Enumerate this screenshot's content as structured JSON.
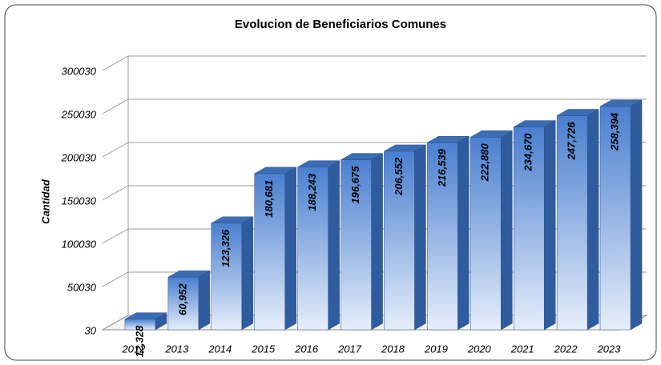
{
  "chart_data": {
    "type": "bar3d",
    "title": "Evolucion de Beneficiarios Comunes",
    "y_label": "Cantidad",
    "categories": [
      "2012",
      "2013",
      "2014",
      "2015",
      "2016",
      "2017",
      "2018",
      "2019",
      "2020",
      "2021",
      "2022",
      "2023"
    ],
    "values": [
      12328,
      60952,
      123326,
      180681,
      188243,
      196675,
      206552,
      216539,
      222880,
      234670,
      247726,
      258394
    ],
    "value_labels": [
      "12,328",
      "60,952",
      "123,326",
      "180,681",
      "188,243",
      "196,675",
      "206,552",
      "216,539",
      "222,880",
      "234,670",
      "247,726",
      "258,394"
    ],
    "color": "#4a7fcf",
    "ylim": [
      30,
      300030
    ],
    "yticks": [
      30,
      50030,
      100030,
      150030,
      200030,
      250030,
      300030
    ],
    "grid": true
  }
}
